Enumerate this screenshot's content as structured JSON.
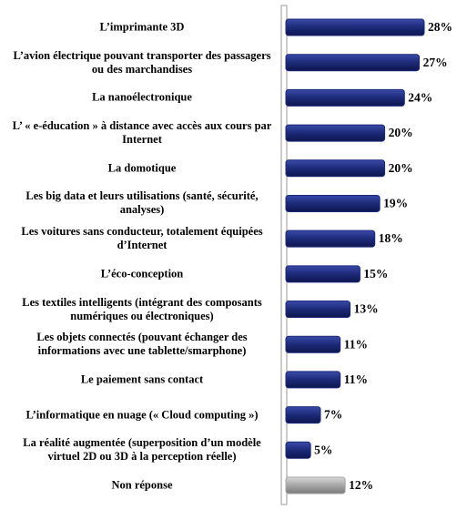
{
  "chart_data": {
    "type": "barh",
    "categories": [
      "L’imprimante 3D",
      "L’avion électrique pouvant transporter des passagers ou des marchandises",
      "La nanoélectronique",
      "L’ « e-éducation » à distance avec accès aux cours par Internet",
      "La domotique",
      "Les big data et leurs utilisations (santé, sécurité, analyses)",
      "Les voitures sans conducteur, totalement équipées d’Internet",
      "L’éco-conception",
      "Les textiles intelligents (intégrant des composants numériques ou électroniques)",
      "Les objets connectés (pouvant échanger des informations avec une tablette/smarphone)",
      "Le paiement sans contact",
      "L’informatique en nuage (« Cloud computing »)",
      "La réalité augmentée (superposition d’un modèle virtuel 2D ou 3D à la perception réelle)",
      "Non réponse"
    ],
    "values": [
      28,
      27,
      24,
      20,
      20,
      19,
      18,
      15,
      13,
      11,
      11,
      7,
      5,
      12
    ],
    "value_labels": [
      "28%",
      "27%",
      "24%",
      "20%",
      "20%",
      "19%",
      "18%",
      "15%",
      "13%",
      "11%",
      "11%",
      "7%",
      "5%",
      "12%"
    ],
    "colors": [
      "#1c2a78",
      "#1c2a78",
      "#1c2a78",
      "#1c2a78",
      "#1c2a78",
      "#1c2a78",
      "#1c2a78",
      "#1c2a78",
      "#1c2a78",
      "#1c2a78",
      "#1c2a78",
      "#1c2a78",
      "#1c2a78",
      "#a6a6a6"
    ]
  }
}
